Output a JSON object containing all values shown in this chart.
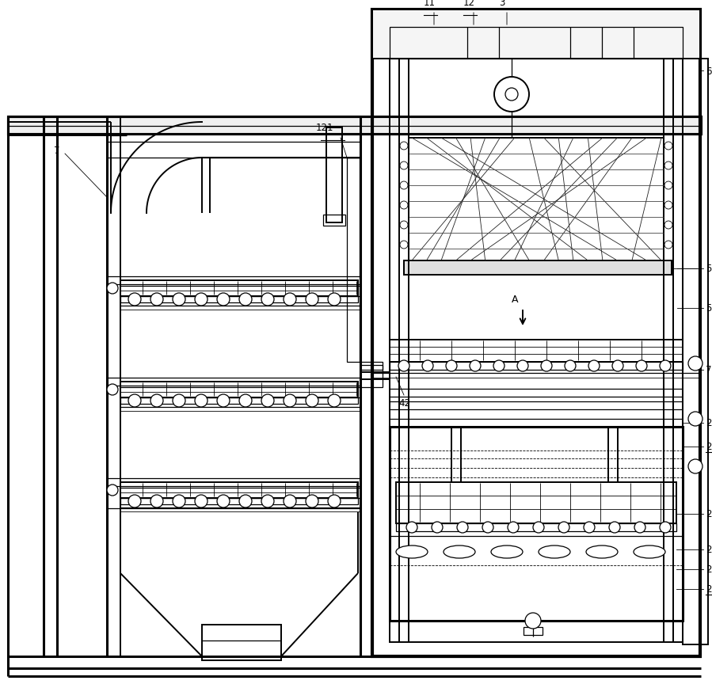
{
  "bg_color": "#ffffff",
  "line_color": "#000000",
  "fig_width": 8.99,
  "fig_height": 8.7,
  "dpi": 100
}
